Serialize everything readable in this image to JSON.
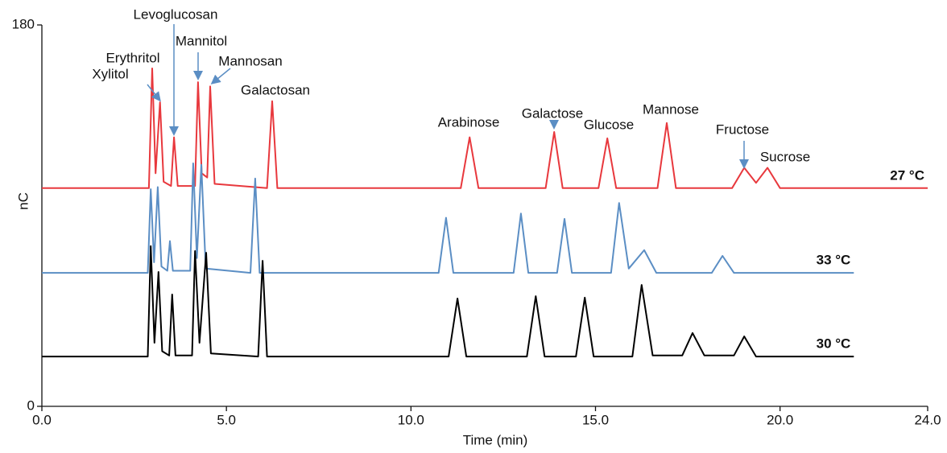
{
  "chart_data": {
    "type": "line",
    "xlabel": "Time (min)",
    "ylabel": "nC",
    "xlim": [
      0,
      24
    ],
    "ylim": [
      0,
      180
    ],
    "xticks": [
      {
        "value": 0,
        "label": "0.0"
      },
      {
        "value": 5,
        "label": "5.0"
      },
      {
        "value": 10,
        "label": "10.0"
      },
      {
        "value": 15,
        "label": "15.0"
      },
      {
        "value": 20,
        "label": "20.0"
      },
      {
        "value": 24,
        "label": "24.0"
      }
    ],
    "yticks": [
      0,
      180
    ],
    "annotations": [
      "Levoglucosan",
      "Mannitol",
      "Erythritol",
      "Mannosan",
      "Xylitol",
      "Galactosan",
      "Arabinose",
      "Galactose",
      "Glucose",
      "Mannose",
      "Fructose",
      "Sucrose"
    ],
    "series": [
      {
        "name": "27 °C",
        "color": "#e8383d",
        "x": [
          0,
          2.9,
          2.99,
          3.08,
          3.2,
          3.3,
          3.5,
          3.58,
          3.68,
          4.15,
          4.23,
          4.33,
          4.48,
          4.56,
          4.68,
          6.1,
          6.24,
          6.38,
          11.35,
          11.59,
          11.83,
          13.65,
          13.88,
          14.11,
          15.08,
          15.32,
          15.56,
          16.68,
          16.93,
          17.18,
          18.7,
          19.03,
          19.35,
          19.66,
          20.0,
          24
        ],
        "values": [
          103,
          103,
          159.5,
          110,
          143.5,
          106,
          104,
          127,
          104,
          104,
          153,
          110,
          108,
          151,
          105,
          103,
          144,
          103,
          103,
          127,
          103,
          103,
          129.5,
          103,
          103,
          126.5,
          103,
          103,
          133.7,
          103,
          103,
          112.6,
          105.5,
          112.6,
          103,
          103
        ]
      },
      {
        "name": "33 °C",
        "color": "#5b8ec4",
        "x": [
          0,
          2.87,
          2.95,
          3.04,
          3.14,
          3.24,
          3.4,
          3.47,
          3.55,
          4.02,
          4.1,
          4.2,
          4.32,
          4.44,
          5.65,
          5.78,
          5.9,
          10.75,
          10.95,
          11.15,
          12.78,
          12.98,
          13.18,
          13.96,
          14.16,
          14.36,
          15.42,
          15.64,
          15.9,
          16.32,
          16.65,
          18.15,
          18.44,
          18.75,
          22
        ],
        "values": [
          63,
          63,
          102.5,
          68,
          103.5,
          66,
          64,
          78,
          64,
          64,
          114.7,
          70,
          114,
          65,
          63,
          107.5,
          63,
          63,
          89,
          63,
          63,
          91,
          63,
          63,
          88.5,
          63,
          63,
          96,
          65,
          73.7,
          63,
          63,
          71,
          63,
          63
        ]
      },
      {
        "name": "30 °C",
        "color": "#000000",
        "x": [
          0,
          2.87,
          2.95,
          3.05,
          3.16,
          3.26,
          3.45,
          3.53,
          3.62,
          4.07,
          4.15,
          4.27,
          4.45,
          4.58,
          5.86,
          5.98,
          6.1,
          11.02,
          11.26,
          11.5,
          13.14,
          13.38,
          13.62,
          14.47,
          14.71,
          14.95,
          16.0,
          16.25,
          16.55,
          17.35,
          17.63,
          17.95,
          18.75,
          19.03,
          19.35,
          22
        ],
        "values": [
          23.5,
          23.5,
          75.6,
          30,
          63.4,
          26,
          24,
          52.8,
          24,
          24,
          73.3,
          30,
          72.5,
          25,
          23.5,
          68.7,
          23.5,
          23.5,
          50.9,
          23.5,
          23.5,
          52,
          23.5,
          23.5,
          51.3,
          23.5,
          23.5,
          57.3,
          24,
          24,
          34.6,
          24,
          24,
          33,
          23.5,
          23.5
        ]
      }
    ]
  }
}
